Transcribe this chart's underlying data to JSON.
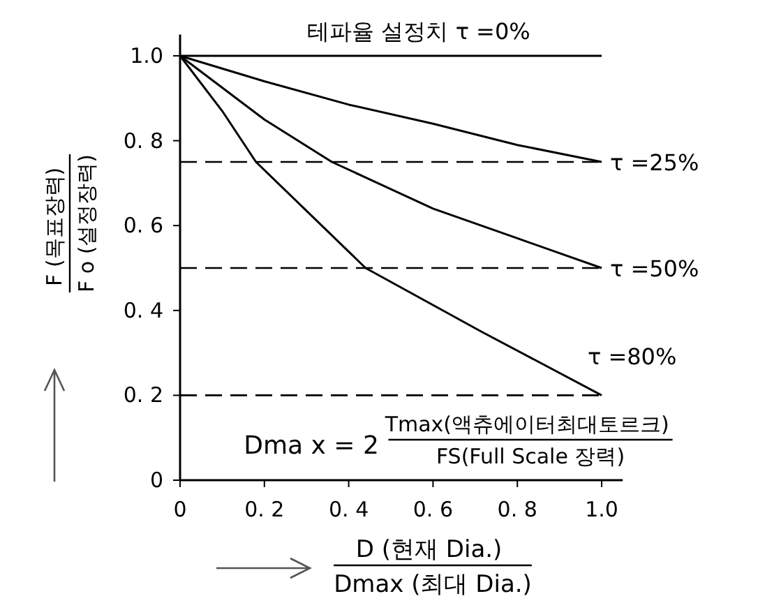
{
  "chart_data": {
    "type": "line",
    "xlabel": "D (현재 Dia.)\nDmax (최대 Dia.)",
    "ylabel": "F (목표장력)\nF o (설정장력)",
    "xlim": [
      0,
      1.05
    ],
    "ylim": [
      0,
      1.05
    ],
    "xticks": [
      0,
      {
        "value": 0.2,
        "label": "0. 2"
      },
      {
        "value": 0.4,
        "label": "0. 4"
      },
      {
        "value": 0.6,
        "label": "0. 6"
      },
      {
        "value": 0.8,
        "label": "0. 8"
      },
      {
        "value": 1.0,
        "label": "1.0"
      }
    ],
    "yticks": [
      0,
      {
        "value": 0.2,
        "label": "0. 2"
      },
      {
        "value": 0.4,
        "label": "0. 4"
      },
      {
        "value": 0.6,
        "label": "0. 6"
      },
      {
        "value": 0.8,
        "label": "0. 8"
      },
      {
        "value": 1.0,
        "label": "1.0"
      }
    ],
    "grid": false,
    "marker": "none",
    "line_style": "solid",
    "series": [
      {
        "name": "테파율 설정치 τ =0%",
        "color": "#000000",
        "x": [
          0,
          1.0
        ],
        "values": [
          1.0,
          1.0
        ]
      },
      {
        "name": "τ =25%",
        "color": "#000000",
        "x": [
          0,
          0.2,
          0.4,
          0.6,
          0.8,
          1.0
        ],
        "values": [
          1.0,
          0.94,
          0.885,
          0.84,
          0.79,
          0.75
        ]
      },
      {
        "name": "τ =50%",
        "color": "#000000",
        "x": [
          0,
          0.2,
          0.36,
          0.6,
          0.8,
          1.0
        ],
        "values": [
          1.0,
          0.85,
          0.75,
          0.64,
          0.57,
          0.5
        ]
      },
      {
        "name": "τ =80%",
        "color": "#000000",
        "x": [
          0,
          0.1,
          0.18,
          0.44,
          0.715,
          1.0
        ],
        "values": [
          1.0,
          0.87,
          0.75,
          0.5,
          0.35,
          0.2
        ]
      }
    ],
    "ref_lines": [
      {
        "axis": "y",
        "value": 0.75,
        "line_style": "dashed",
        "color": "#000000"
      },
      {
        "axis": "y",
        "value": 0.5,
        "line_style": "dashed",
        "color": "#000000"
      },
      {
        "axis": "y",
        "value": 0.2,
        "line_style": "dashed",
        "color": "#000000"
      }
    ],
    "annotations": [
      "Dma x = 2\nTmax(액츄에이터최대토르크)\nFS(Full Scale 장력)"
    ]
  }
}
